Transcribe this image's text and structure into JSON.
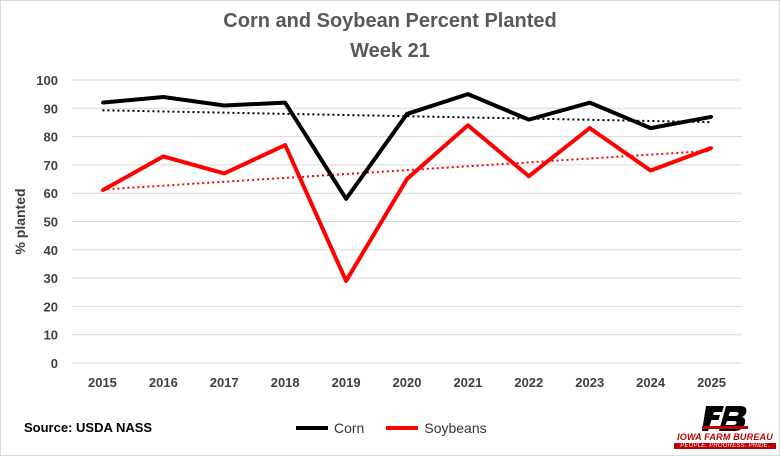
{
  "chart_data": {
    "type": "line",
    "title": "Corn and Soybean Percent Planted",
    "subtitle": "Week 21",
    "xlabel": "",
    "ylabel": "% planted",
    "categories": [
      "2015",
      "2016",
      "2017",
      "2018",
      "2019",
      "2020",
      "2021",
      "2022",
      "2023",
      "2024",
      "2025"
    ],
    "ylim": [
      0,
      100
    ],
    "yticks": [
      0,
      10,
      20,
      30,
      40,
      50,
      60,
      70,
      80,
      90,
      100
    ],
    "grid": true,
    "legend": "bottom",
    "series": [
      {
        "name": "Corn",
        "color": "#000000",
        "values": [
          92,
          94,
          91,
          92,
          58,
          88,
          95,
          86,
          92,
          83,
          87
        ],
        "trend": [
          89.3,
          85.1
        ]
      },
      {
        "name": "Soybeans",
        "color": "#ff0000",
        "values": [
          61,
          73,
          67,
          77,
          29,
          65,
          84,
          66,
          83,
          68,
          76
        ],
        "trend": [
          61.3,
          75.0
        ]
      }
    ],
    "source": "Source: USDA NASS"
  },
  "logo": {
    "name": "iowa-farm-bureau-logo",
    "line1": "IOWA FARM BUREAU",
    "line2": "PEOPLE. PROGRESS. PRIDE."
  }
}
